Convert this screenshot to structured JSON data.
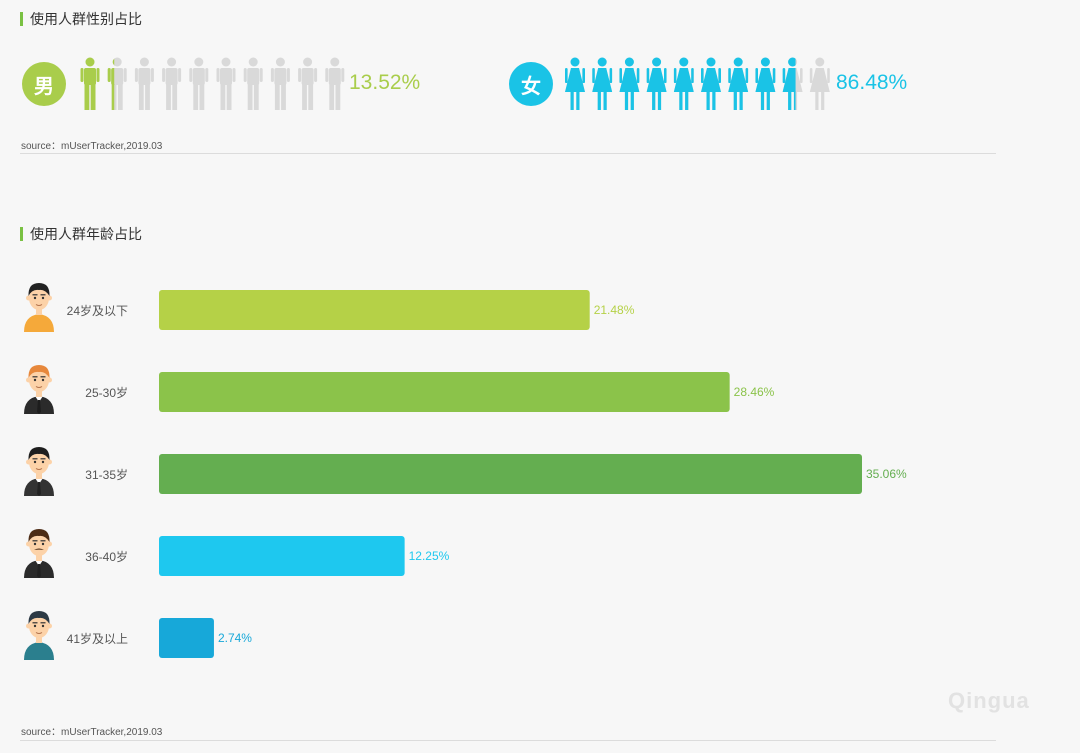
{
  "gender": {
    "title": "使用人群性别占比",
    "male": {
      "label": "男",
      "percent_text": "13.52%",
      "fraction": 0.1352,
      "color": "#a9cd4b"
    },
    "female": {
      "label": "女",
      "percent_text": "86.48%",
      "fraction": 0.8648,
      "color": "#1ac3e6"
    },
    "inactive_color": "#d9d9d9",
    "icon_count": 10,
    "source": "source：mUserTracker,2019.03"
  },
  "age": {
    "title": "使用人群年龄占比",
    "source": "source：mUserTracker,2019.03"
  },
  "watermark": "Qingua",
  "chart_data": {
    "type": "bar",
    "orientation": "horizontal",
    "categories": [
      "24岁及以下",
      "25-30岁",
      "31-35岁",
      "36-40岁",
      "41岁及以上"
    ],
    "values": [
      21.48,
      28.46,
      35.06,
      12.25,
      2.74
    ],
    "value_labels": [
      "21.48%",
      "28.46%",
      "35.06%",
      "12.25%",
      "2.74%"
    ],
    "colors": [
      "#b5d147",
      "#8bc34a",
      "#64ae50",
      "#1ec8ef",
      "#17a8d9"
    ],
    "avatar_icons": [
      "young-man-icon",
      "ginger-man-icon",
      "suit-man-icon",
      "mustache-man-icon",
      "older-man-icon"
    ],
    "xlim": [
      0,
      35.06
    ],
    "title": "使用人群年龄占比",
    "grid": false
  }
}
